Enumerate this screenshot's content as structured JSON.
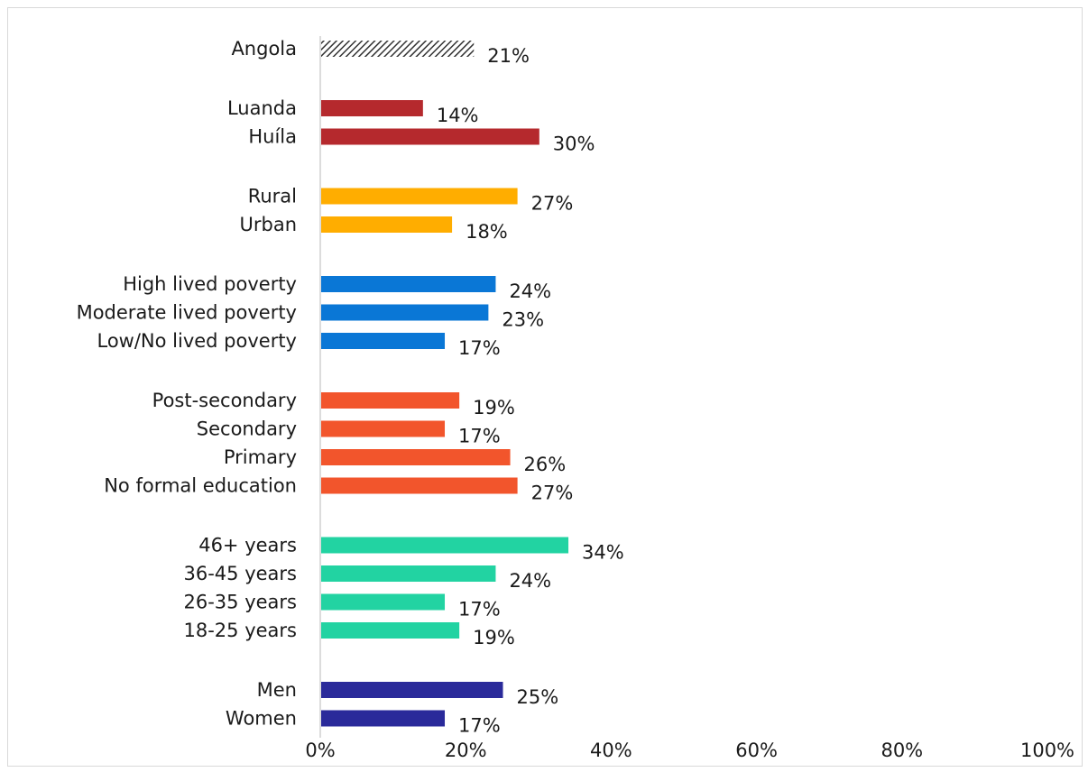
{
  "chart_data": {
    "type": "bar",
    "orientation": "horizontal",
    "xlim": [
      0,
      100
    ],
    "xticks": [
      {
        "value": 0,
        "label": "0%"
      },
      {
        "value": 20,
        "label": "20%"
      },
      {
        "value": 40,
        "label": "40%"
      },
      {
        "value": 60,
        "label": "60%"
      },
      {
        "value": 80,
        "label": "80%"
      },
      {
        "value": 100,
        "label": "100%"
      }
    ],
    "grid": false,
    "groups": [
      {
        "color": "#333333",
        "pattern": "hatched",
        "items": [
          {
            "label": "Angola",
            "value": 21,
            "value_label": "21%"
          }
        ]
      },
      {
        "color": "#b5292d",
        "items": [
          {
            "label": "Luanda",
            "value": 14,
            "value_label": "14%"
          },
          {
            "label": "Huíla",
            "value": 30,
            "value_label": "30%"
          }
        ]
      },
      {
        "color": "#ffad00",
        "items": [
          {
            "label": "Rural",
            "value": 27,
            "value_label": "27%"
          },
          {
            "label": "Urban",
            "value": 18,
            "value_label": "18%"
          }
        ]
      },
      {
        "color": "#0a77d6",
        "items": [
          {
            "label": "High lived poverty",
            "value": 24,
            "value_label": "24%"
          },
          {
            "label": "Moderate lived poverty",
            "value": 23,
            "value_label": "23%"
          },
          {
            "label": "Low/No lived poverty",
            "value": 17,
            "value_label": "17%"
          }
        ]
      },
      {
        "color": "#f2552c",
        "items": [
          {
            "label": "Post-secondary",
            "value": 19,
            "value_label": "19%"
          },
          {
            "label": "Secondary",
            "value": 17,
            "value_label": "17%"
          },
          {
            "label": "Primary",
            "value": 26,
            "value_label": "26%"
          },
          {
            "label": "No formal education",
            "value": 27,
            "value_label": "27%"
          }
        ]
      },
      {
        "color": "#22d3a2",
        "items": [
          {
            "label": "46+ years",
            "value": 34,
            "value_label": "34%"
          },
          {
            "label": "36-45 years",
            "value": 24,
            "value_label": "24%"
          },
          {
            "label": "26-35 years",
            "value": 17,
            "value_label": "17%"
          },
          {
            "label": "18-25 years",
            "value": 19,
            "value_label": "19%"
          }
        ]
      },
      {
        "color": "#2a2a9a",
        "items": [
          {
            "label": "Men",
            "value": 25,
            "value_label": "25%"
          },
          {
            "label": "Women",
            "value": 17,
            "value_label": "17%"
          }
        ]
      }
    ]
  }
}
